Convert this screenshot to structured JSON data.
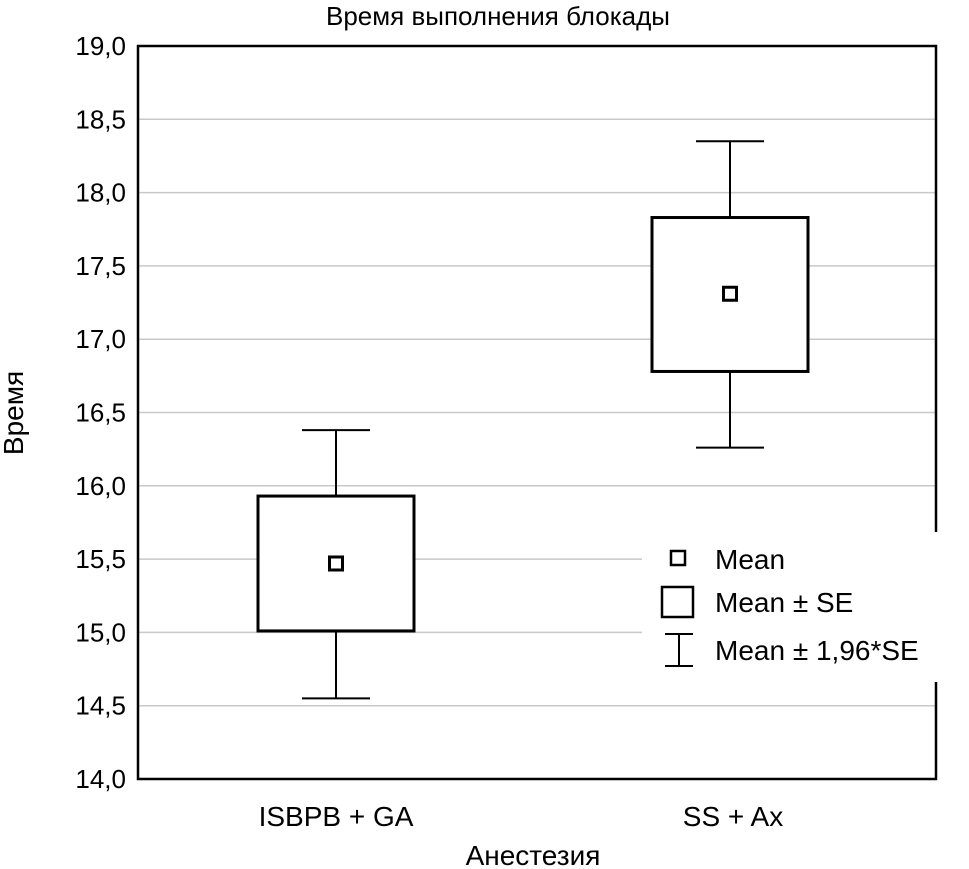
{
  "chart_data": {
    "type": "box",
    "title": "Время выполнения блокады",
    "xlabel": "Анестезия",
    "ylabel": "Время",
    "ylim": [
      14.0,
      19.0
    ],
    "yticks": [
      14.0,
      14.5,
      15.0,
      15.5,
      16.0,
      16.5,
      17.0,
      17.5,
      18.0,
      18.5,
      19.0
    ],
    "ytick_labels": [
      "14,0",
      "14,5",
      "15,0",
      "15,5",
      "16,0",
      "16,5",
      "17,0",
      "17,5",
      "18,0",
      "18,5",
      "19,0"
    ],
    "grid": true,
    "categories": [
      "ISBPB + GA",
      "SS + Ax"
    ],
    "groups": [
      {
        "category": "ISBPB + GA",
        "mean": 15.47,
        "se_low": 15.01,
        "se_high": 15.93,
        "ci_low": 14.55,
        "ci_high": 16.38
      },
      {
        "category": "SS + Ax",
        "mean": 17.31,
        "se_low": 16.78,
        "se_high": 17.83,
        "ci_low": 16.26,
        "ci_high": 18.35
      }
    ],
    "legend": {
      "position": "right",
      "entries": [
        "Mean",
        "Mean ± SE",
        "Mean ± 1,96*SE"
      ]
    }
  }
}
